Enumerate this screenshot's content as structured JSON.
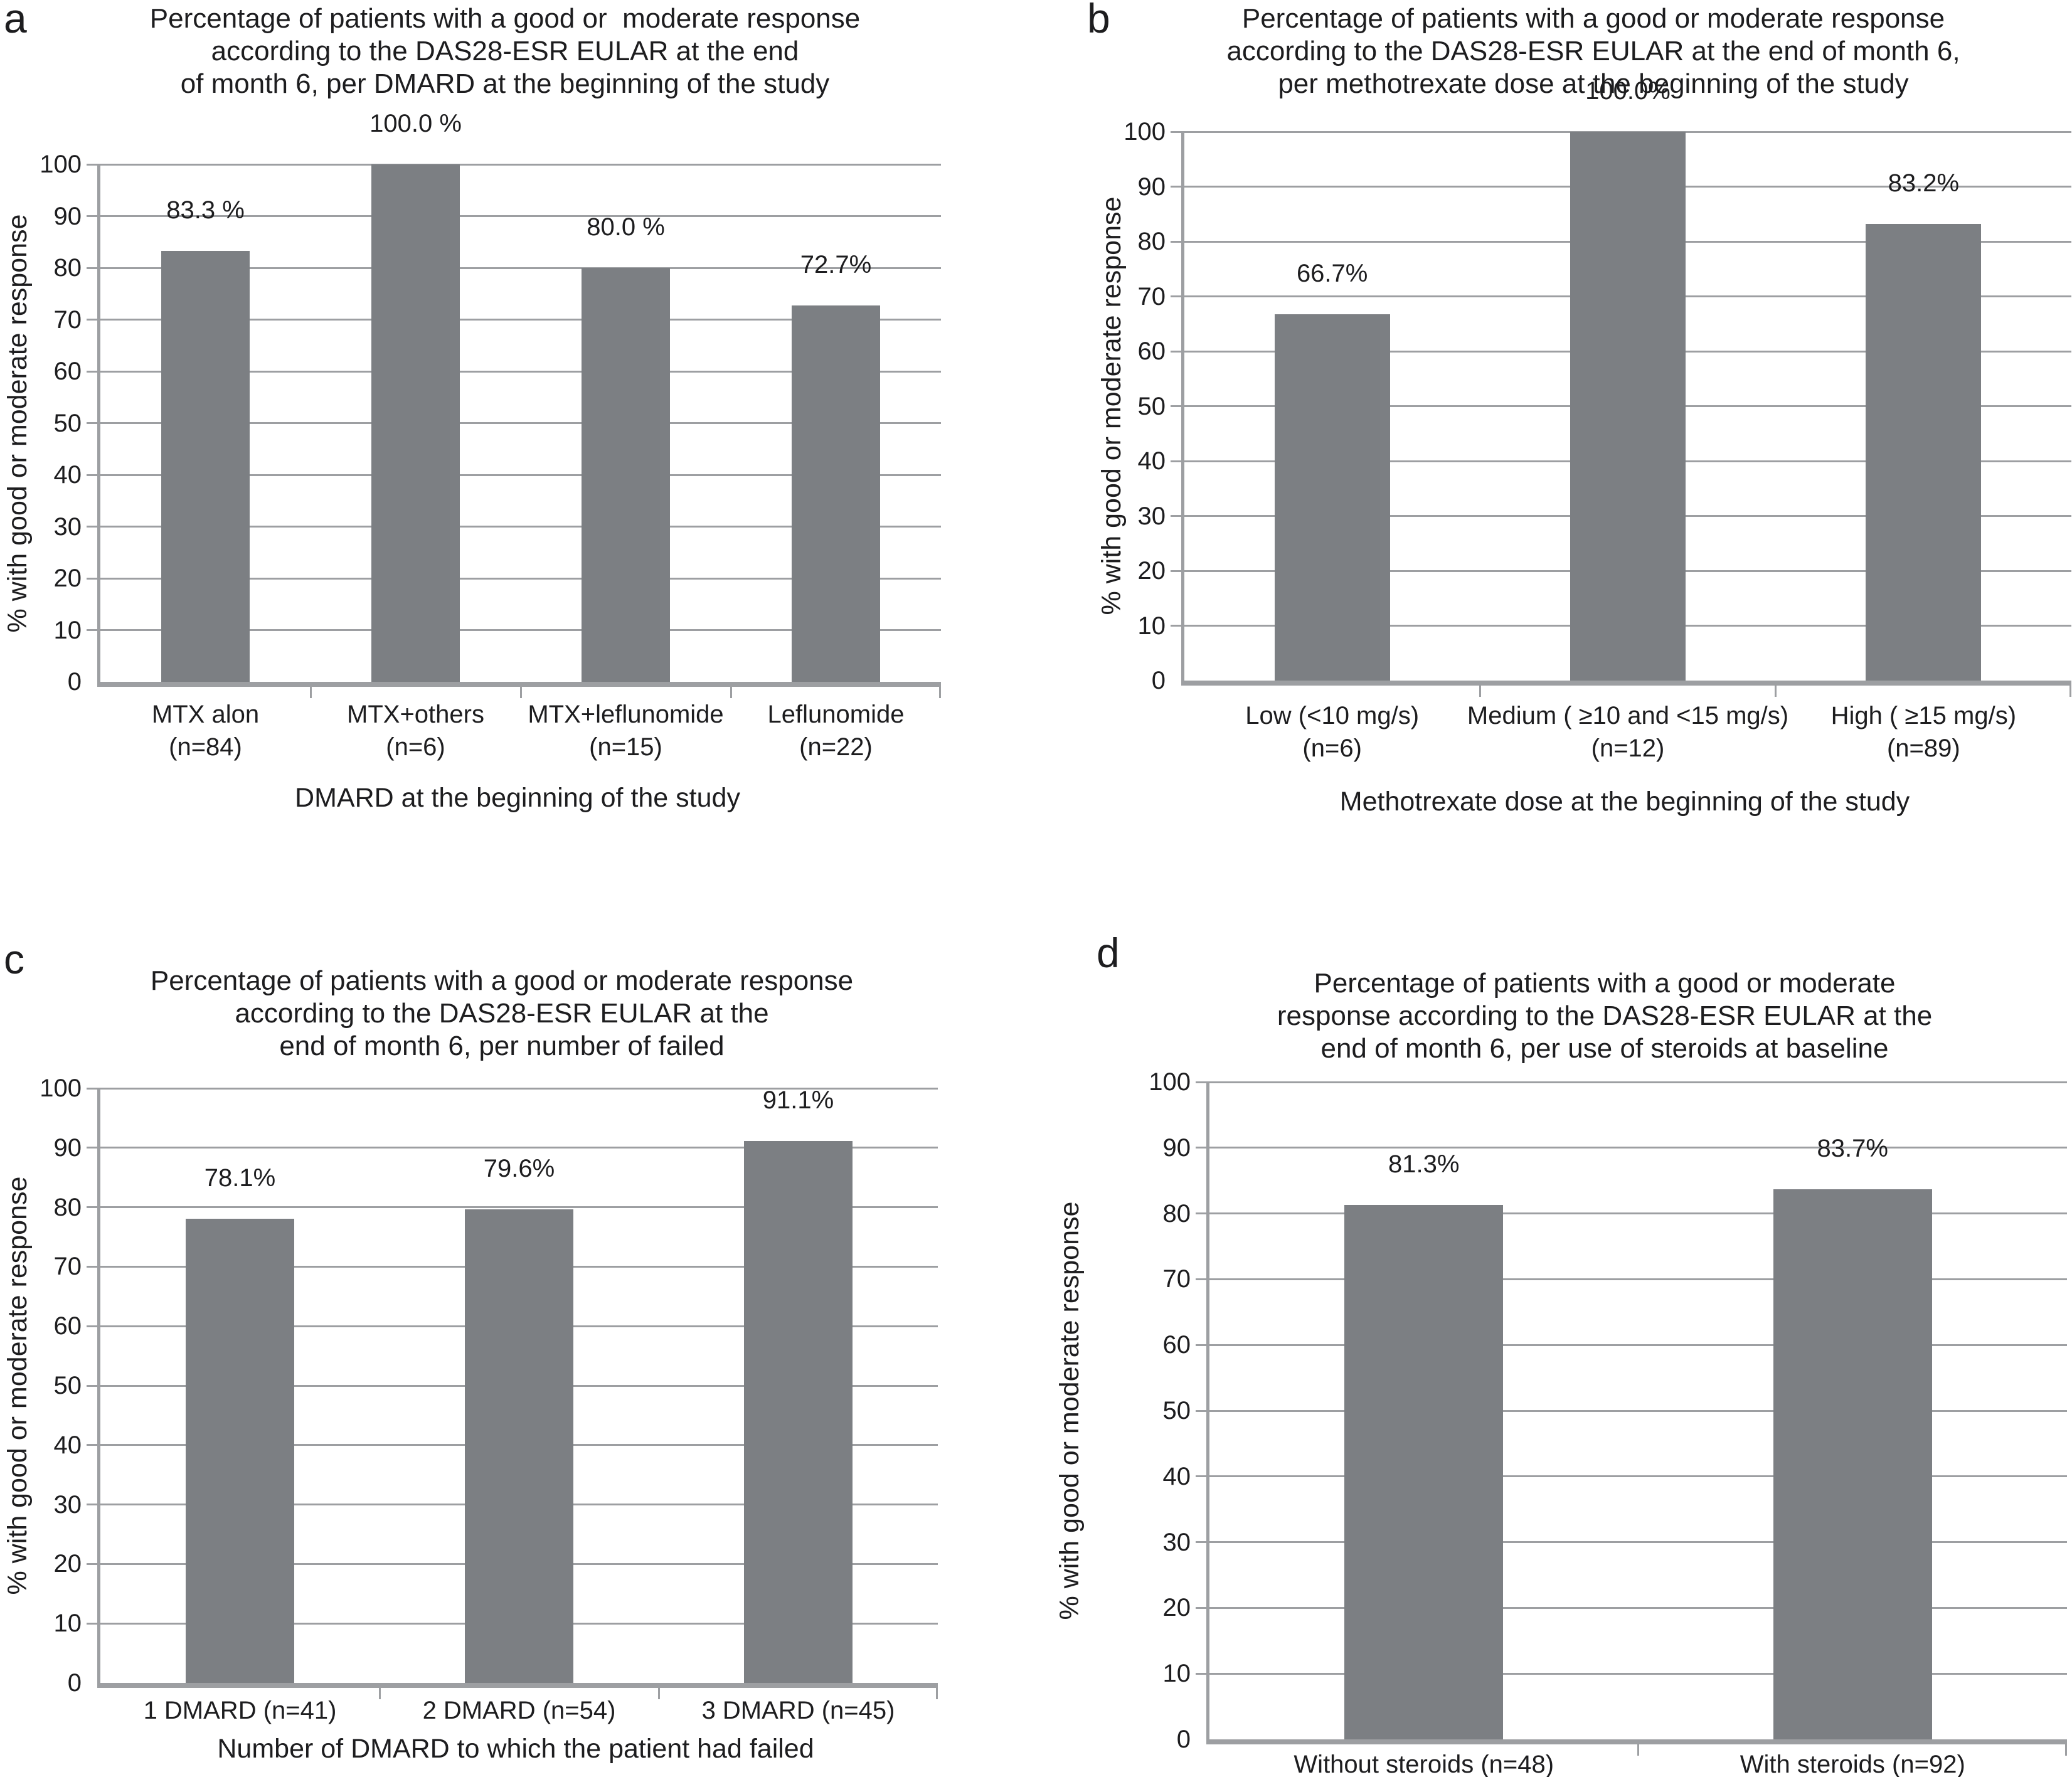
{
  "figure": {
    "background": "#ffffff",
    "text_color": "#1d1d1f",
    "bar_color": "#7c7f83",
    "grid_color": "#9d9fa2",
    "axis_color": "#9d9fa2"
  },
  "chart_data": [
    {
      "type": "bar",
      "letter": "a",
      "title": "Percentage of patients with a good or  moderate response according to the DAS28-ESR EULAR at the end of month 6, per DMARD at the beginning of the study",
      "title_lines": [
        "Percentage of patients with a good or  moderate response",
        "according to the DAS28-ESR EULAR at the end",
        "of month 6, per DMARD at the beginning of the study"
      ],
      "xlabel": "DMARD at the beginning of the study",
      "ylabel": "% with good or moderate response",
      "ylim": [
        0,
        100
      ],
      "y_ticks": [
        0,
        10,
        20,
        30,
        40,
        50,
        60,
        70,
        80,
        90,
        100
      ],
      "grid": true,
      "legend": false,
      "categories": [
        "MTX alon\n(n=84)",
        "MTX+others\n(n=6)",
        "MTX+leflunomide\n(n=15)",
        "Leflunomide\n(n=22)"
      ],
      "values": [
        83.3,
        100.0,
        80.0,
        72.7
      ],
      "value_labels": [
        "83.3 %",
        "100.0 %",
        "80.0 %",
        "72.7%"
      ]
    },
    {
      "type": "bar",
      "letter": "b",
      "title": "Percentage of patients with a good or moderate response according to the DAS28-ESR EULAR at the end of month 6, per methotrexate dose at the beginning of the study",
      "title_lines": [
        "Percentage of patients with a good or moderate response",
        "according to the DAS28-ESR EULAR at the end of month 6,",
        "per methotrexate dose at the beginning of the study"
      ],
      "xlabel": "Methotrexate dose at the beginning of the study",
      "ylabel": "% with good or moderate response",
      "ylim": [
        0,
        100
      ],
      "y_ticks": [
        0,
        10,
        20,
        30,
        40,
        50,
        60,
        70,
        80,
        90,
        100
      ],
      "grid": true,
      "legend": false,
      "categories": [
        "Low (<10 mg/s)\n(n=6)",
        "Medium ( ≥10 and <15 mg/s)\n(n=12)",
        "High ( ≥15 mg/s)\n(n=89)"
      ],
      "values": [
        66.7,
        100.0,
        83.2
      ],
      "value_labels": [
        "66.7%",
        "100.0%",
        "83.2%"
      ]
    },
    {
      "type": "bar",
      "letter": "c",
      "title": "Percentage of patients with a good or moderate response according to the DAS28-ESR EULAR at the end of month 6, per number of failed",
      "title_lines": [
        "Percentage of patients with a good or moderate response",
        "according to the DAS28-ESR EULAR at the",
        "end of month 6, per number of failed"
      ],
      "xlabel": "Number of DMARD to which the patient had failed",
      "ylabel": "% with good or moderate response",
      "ylim": [
        0,
        100
      ],
      "y_ticks": [
        0,
        10,
        20,
        30,
        40,
        50,
        60,
        70,
        80,
        90,
        100
      ],
      "grid": true,
      "legend": false,
      "categories": [
        "1 DMARD (n=41)",
        "2 DMARD (n=54)",
        "3 DMARD (n=45)"
      ],
      "values": [
        78.1,
        79.6,
        91.1
      ],
      "value_labels": [
        "78.1%",
        "79.6%",
        "91.1%"
      ]
    },
    {
      "type": "bar",
      "letter": "d",
      "title": "Percentage of patients with a good or moderate response according to the DAS28-ESR EULAR at the end of month 6, per use of steroids at baseline",
      "title_lines": [
        "Percentage of patients with a good or moderate",
        "response according to the DAS28-ESR EULAR at the",
        "end of month 6, per use of steroids at baseline"
      ],
      "xlabel": "",
      "ylabel": "% with good or moderate response",
      "ylim": [
        0,
        100
      ],
      "y_ticks": [
        0,
        10,
        20,
        30,
        40,
        50,
        60,
        70,
        80,
        90,
        100
      ],
      "grid": true,
      "legend": false,
      "categories": [
        "Without steroids (n=48)",
        "With steroids (n=92)"
      ],
      "values": [
        81.3,
        83.7
      ],
      "value_labels": [
        "81.3%",
        "83.7%"
      ]
    }
  ]
}
